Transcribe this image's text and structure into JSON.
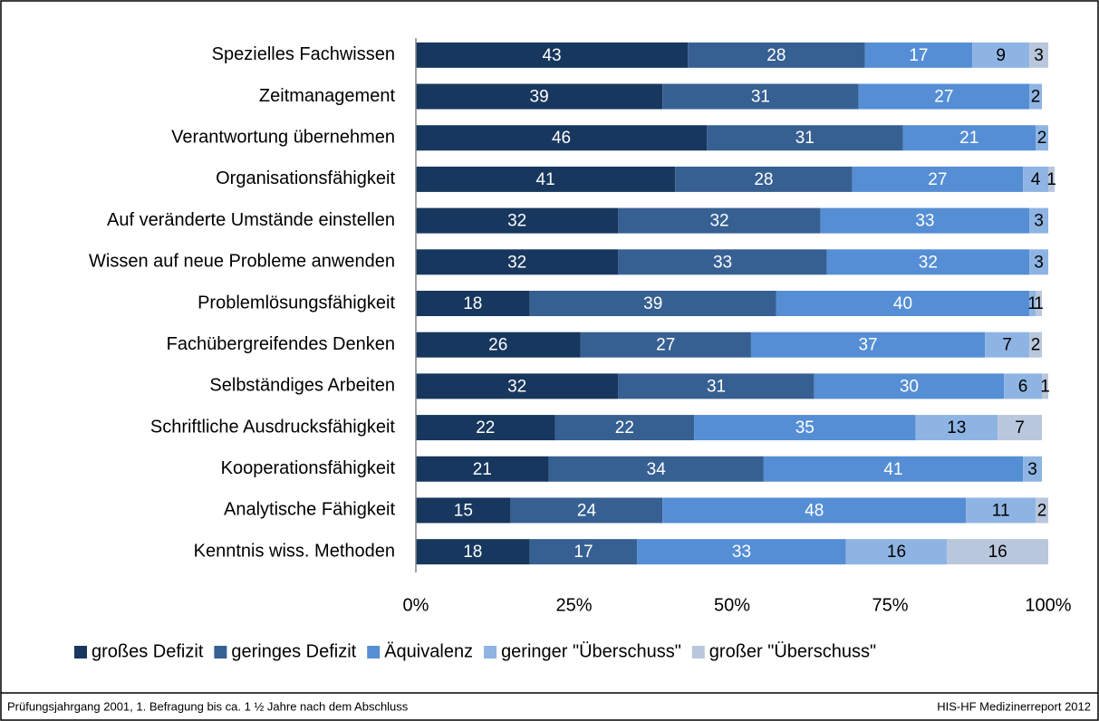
{
  "chart_data": {
    "type": "stacked-bar-horizontal",
    "categories": [
      "Spezielles Fachwissen",
      "Zeitmanagement",
      "Verantwortung übernehmen",
      "Organisationsfähigkeit",
      "Auf veränderte Umstände einstellen",
      "Wissen auf neue Probleme anwenden",
      "Problemlösungsfähigkeit",
      "Fachübergreifendes Denken",
      "Selbständiges Arbeiten",
      "Schriftliche Ausdrucksfähigkeit",
      "Kooperationsfähigkeit",
      "Analytische Fähigkeit",
      "Kenntnis wiss. Methoden"
    ],
    "series": [
      {
        "name": "großes Defizit",
        "color": "#17375e",
        "values": [
          43,
          39,
          46,
          41,
          32,
          32,
          18,
          26,
          32,
          22,
          21,
          15,
          18
        ]
      },
      {
        "name": "geringes Defizit",
        "color": "#376092",
        "values": [
          28,
          31,
          31,
          28,
          32,
          33,
          39,
          27,
          31,
          22,
          34,
          24,
          17
        ]
      },
      {
        "name": "Äquivalenz",
        "color": "#558ed5",
        "values": [
          17,
          27,
          21,
          27,
          33,
          32,
          40,
          37,
          30,
          35,
          41,
          48,
          33
        ]
      },
      {
        "name": "geringer \"Überschuss\"",
        "color": "#8eb4e3",
        "values": [
          9,
          2,
          2,
          4,
          3,
          3,
          1,
          7,
          6,
          13,
          3,
          11,
          16
        ]
      },
      {
        "name": "großer \"Überschuss\"",
        "color": "#b9c7dd",
        "values": [
          3,
          null,
          null,
          1,
          null,
          null,
          1,
          2,
          1,
          7,
          null,
          2,
          16
        ]
      }
    ],
    "xlim": [
      0,
      100
    ],
    "xticks": [
      {
        "value": 0,
        "label": "0%"
      },
      {
        "value": 25,
        "label": "25%"
      },
      {
        "value": 50,
        "label": "50%"
      },
      {
        "value": 75,
        "label": "75%"
      },
      {
        "value": 100,
        "label": "100%"
      }
    ],
    "legend": "bottom",
    "footnote": "Prüfungsjahrgang 2001, 1. Befragung bis ca. 1 ½ Jahre nach dem Abschluss",
    "source": "HIS-HF Medizinerreport 2012"
  }
}
